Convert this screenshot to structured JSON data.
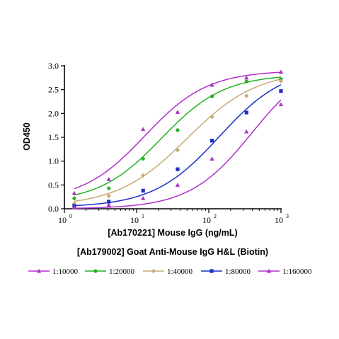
{
  "chart_data": {
    "type": "scatter",
    "xlabel": "[Ab170221] Mouse IgG (ng/mL)",
    "ylabel": "OD450",
    "subtitle": "[Ab179002] Goat Anti-Mouse IgG H&L (Biotin)",
    "x_scale": "log",
    "xlim": [
      1,
      1000
    ],
    "ylim": [
      0,
      3.0
    ],
    "x_ticks": [
      {
        "value": 1,
        "base": "10",
        "exp": "0"
      },
      {
        "value": 10,
        "base": "10",
        "exp": "1"
      },
      {
        "value": 100,
        "base": "10",
        "exp": "2"
      },
      {
        "value": 1000,
        "base": "10",
        "exp": "3"
      }
    ],
    "y_ticks": [
      {
        "value": 0,
        "label": "0.0"
      },
      {
        "value": 0.5,
        "label": "0.5"
      },
      {
        "value": 1.0,
        "label": "1.0"
      },
      {
        "value": 1.5,
        "label": "1.5"
      },
      {
        "value": 2.0,
        "label": "2.0"
      },
      {
        "value": 2.5,
        "label": "2.5"
      },
      {
        "value": 3.0,
        "label": "3.0"
      }
    ],
    "grid": false,
    "legend_position": "bottom",
    "x": [
      1.37,
      4.12,
      12.3,
      37.0,
      111,
      333,
      1000
    ],
    "series": [
      {
        "name": "1:10000",
        "color": "#b030c8",
        "marker": "triangle",
        "values": [
          0.33,
          0.62,
          1.67,
          2.03,
          2.6,
          2.75,
          2.87
        ],
        "curve": {
          "bottom": 0.16,
          "top": 2.9,
          "ec50": 13.0,
          "hill": 1.0
        }
      },
      {
        "name": "1:20000",
        "color": "#22b222",
        "marker": "circle",
        "values": [
          0.22,
          0.43,
          1.05,
          1.65,
          2.36,
          2.67,
          2.72
        ],
        "curve": {
          "bottom": 0.13,
          "top": 2.82,
          "ec50": 22.0,
          "hill": 1.0
        }
      },
      {
        "name": "1:40000",
        "color": "#c8aa78",
        "marker": "diamond",
        "values": [
          0.11,
          0.27,
          0.7,
          1.23,
          1.93,
          2.37,
          2.68
        ],
        "curve": {
          "bottom": 0.05,
          "top": 2.9,
          "ec50": 50.0,
          "hill": 0.9
        }
      },
      {
        "name": "1:80000",
        "color": "#1a2fc8",
        "marker": "square",
        "values": [
          0.06,
          0.15,
          0.38,
          0.83,
          1.43,
          2.02,
          2.47
        ],
        "curve": {
          "bottom": 0.03,
          "top": 3.0,
          "ec50": 140.0,
          "hill": 0.95
        }
      },
      {
        "name": "1:160000",
        "color": "#b030c8",
        "marker": "triangle",
        "values": [
          0.03,
          0.08,
          0.22,
          0.5,
          1.05,
          1.62,
          2.19
        ],
        "curve": {
          "bottom": 0.0,
          "top": 3.2,
          "ec50": 400.0,
          "hill": 1.0
        }
      }
    ]
  }
}
